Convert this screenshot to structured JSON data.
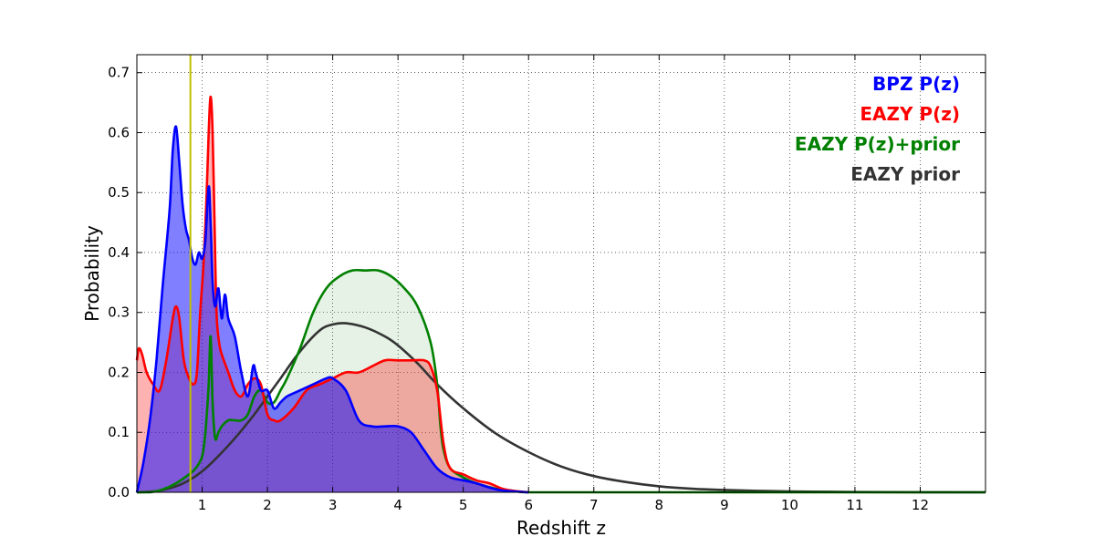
{
  "chart_data": {
    "type": "area",
    "xlabel": "Redshift z",
    "ylabel": "Probability",
    "xlim": [
      0,
      13
    ],
    "ylim": [
      0,
      0.73
    ],
    "xticks": [
      1,
      2,
      3,
      4,
      5,
      6,
      7,
      8,
      9,
      10,
      11,
      12
    ],
    "xtick_labels": [
      "1",
      "2",
      "3",
      "4",
      "5",
      "6",
      "7",
      "8",
      "9",
      "10",
      "11",
      "12"
    ],
    "yticks": [
      0.0,
      0.1,
      0.2,
      0.3,
      0.4,
      0.5,
      0.6,
      0.7
    ],
    "ytick_labels": [
      "0.0",
      "0.1",
      "0.2",
      "0.3",
      "0.4",
      "0.5",
      "0.6",
      "0.7"
    ],
    "grid": true,
    "legend_position": "top-right",
    "reference_line": {
      "x": 0.82,
      "color": "#bfbf00"
    },
    "series": [
      {
        "name": "BPZ P(z)",
        "color": "#0000ff",
        "fill": "rgba(0,0,255,0.5)",
        "x": [
          0.0,
          0.1,
          0.2,
          0.3,
          0.4,
          0.5,
          0.55,
          0.6,
          0.65,
          0.7,
          0.75,
          0.8,
          0.85,
          0.9,
          0.95,
          1.0,
          1.05,
          1.1,
          1.13,
          1.16,
          1.2,
          1.25,
          1.3,
          1.35,
          1.4,
          1.5,
          1.6,
          1.7,
          1.78,
          1.82,
          1.9,
          2.0,
          2.1,
          2.2,
          2.3,
          2.5,
          2.7,
          2.9,
          3.0,
          3.2,
          3.4,
          3.6,
          3.8,
          4.0,
          4.2,
          4.4,
          4.6,
          4.8,
          5.0,
          5.2,
          5.4,
          5.6,
          6.0
        ],
        "y": [
          0.0,
          0.05,
          0.12,
          0.22,
          0.35,
          0.47,
          0.57,
          0.61,
          0.55,
          0.48,
          0.44,
          0.42,
          0.39,
          0.38,
          0.4,
          0.39,
          0.42,
          0.51,
          0.45,
          0.35,
          0.31,
          0.34,
          0.29,
          0.33,
          0.29,
          0.26,
          0.2,
          0.16,
          0.21,
          0.2,
          0.17,
          0.17,
          0.14,
          0.15,
          0.16,
          0.17,
          0.18,
          0.19,
          0.19,
          0.17,
          0.12,
          0.11,
          0.11,
          0.11,
          0.1,
          0.07,
          0.04,
          0.025,
          0.02,
          0.015,
          0.008,
          0.003,
          0.0
        ]
      },
      {
        "name": "EAZY P(z)",
        "color": "#ff0000",
        "fill": "rgba(255,0,0,0.3)",
        "x": [
          0.0,
          0.03,
          0.08,
          0.15,
          0.25,
          0.35,
          0.45,
          0.55,
          0.6,
          0.65,
          0.72,
          0.8,
          0.87,
          0.92,
          0.97,
          1.02,
          1.07,
          1.1,
          1.13,
          1.16,
          1.19,
          1.22,
          1.26,
          1.3,
          1.4,
          1.5,
          1.6,
          1.7,
          1.8,
          1.9,
          2.0,
          2.1,
          2.2,
          2.4,
          2.6,
          2.8,
          3.0,
          3.2,
          3.4,
          3.6,
          3.8,
          4.0,
          4.2,
          4.4,
          4.5,
          4.6,
          4.7,
          4.8,
          5.0,
          5.2,
          5.4,
          5.6,
          5.8,
          6.0
        ],
        "y": [
          0.22,
          0.24,
          0.23,
          0.2,
          0.18,
          0.17,
          0.22,
          0.29,
          0.31,
          0.29,
          0.22,
          0.19,
          0.18,
          0.2,
          0.3,
          0.38,
          0.5,
          0.6,
          0.66,
          0.6,
          0.45,
          0.3,
          0.25,
          0.23,
          0.2,
          0.17,
          0.16,
          0.18,
          0.19,
          0.18,
          0.13,
          0.12,
          0.12,
          0.14,
          0.17,
          0.18,
          0.19,
          0.2,
          0.2,
          0.21,
          0.22,
          0.22,
          0.22,
          0.22,
          0.21,
          0.17,
          0.08,
          0.04,
          0.03,
          0.02,
          0.015,
          0.006,
          0.002,
          0.0
        ]
      },
      {
        "name": "EAZY P(z)+prior",
        "color": "#008000",
        "fill": "rgba(0,128,0,0.1)",
        "x": [
          0.0,
          0.2,
          0.4,
          0.6,
          0.8,
          0.9,
          1.0,
          1.05,
          1.1,
          1.13,
          1.16,
          1.2,
          1.25,
          1.3,
          1.4,
          1.5,
          1.6,
          1.7,
          1.8,
          1.9,
          2.0,
          2.1,
          2.2,
          2.3,
          2.5,
          2.7,
          2.9,
          3.1,
          3.3,
          3.5,
          3.7,
          3.9,
          4.1,
          4.3,
          4.5,
          4.6,
          4.65,
          4.7,
          4.8,
          5.0,
          5.2,
          5.5,
          5.8,
          6.0,
          7.0,
          13.0
        ],
        "y": [
          0.0,
          0.0,
          0.005,
          0.015,
          0.03,
          0.04,
          0.06,
          0.1,
          0.18,
          0.26,
          0.15,
          0.09,
          0.1,
          0.11,
          0.12,
          0.12,
          0.12,
          0.13,
          0.16,
          0.17,
          0.15,
          0.15,
          0.17,
          0.19,
          0.24,
          0.3,
          0.34,
          0.36,
          0.37,
          0.37,
          0.37,
          0.36,
          0.34,
          0.31,
          0.25,
          0.18,
          0.11,
          0.07,
          0.04,
          0.025,
          0.015,
          0.006,
          0.002,
          0.0,
          0.0,
          0.0
        ]
      },
      {
        "name": "EAZY prior",
        "color": "#333333",
        "fill": "rgba(51,51,51,0.0)",
        "x": [
          0.0,
          0.3,
          0.6,
          0.8,
          1.0,
          1.2,
          1.5,
          1.8,
          2.0,
          2.2,
          2.5,
          2.8,
          3.0,
          3.2,
          3.5,
          3.8,
          4.0,
          4.3,
          4.6,
          5.0,
          5.5,
          6.0,
          6.5,
          7.0,
          7.5,
          8.0,
          8.5,
          9.0,
          9.5,
          10.0,
          11.0,
          12.0,
          13.0
        ],
        "y": [
          0.0,
          0.002,
          0.01,
          0.02,
          0.035,
          0.055,
          0.09,
          0.13,
          0.16,
          0.19,
          0.235,
          0.27,
          0.28,
          0.282,
          0.275,
          0.26,
          0.245,
          0.215,
          0.18,
          0.14,
          0.098,
          0.067,
          0.043,
          0.027,
          0.017,
          0.01,
          0.006,
          0.004,
          0.0025,
          0.0015,
          0.0005,
          0.0002,
          0.0
        ]
      }
    ]
  }
}
